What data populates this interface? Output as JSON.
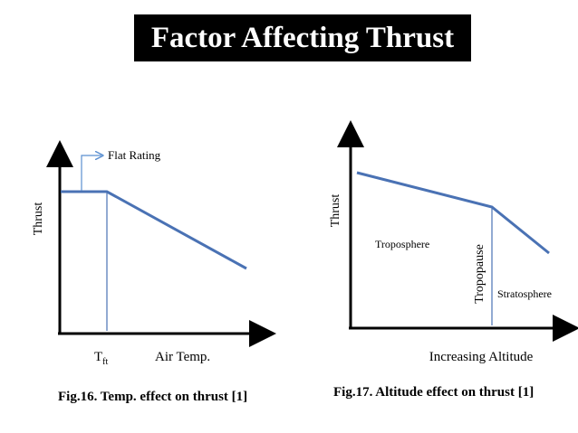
{
  "title": "Factor Affecting Thrust",
  "figure1": {
    "caption": "Fig.16. Temp. effect on thrust [1]",
    "y_axis_label": "Thrust",
    "x_axis_label": "Air Temp.",
    "tick_label_main": "T",
    "tick_label_sub": "ft",
    "annotation": "Flat Rating"
  },
  "figure2": {
    "caption": "Fig.17. Altitude effect on thrust [1]",
    "y_axis_label": "Thrust",
    "x_axis_label": "Increasing Altitude",
    "region_left": "Troposphere",
    "region_right": "Stratosphere",
    "boundary_label": "Tropopause"
  },
  "colors": {
    "curve": "#4a72b4",
    "axis": "#000000",
    "annotation_arrow": "#5b8fd0",
    "title_bg": "#000000",
    "title_text": "#ffffff"
  }
}
